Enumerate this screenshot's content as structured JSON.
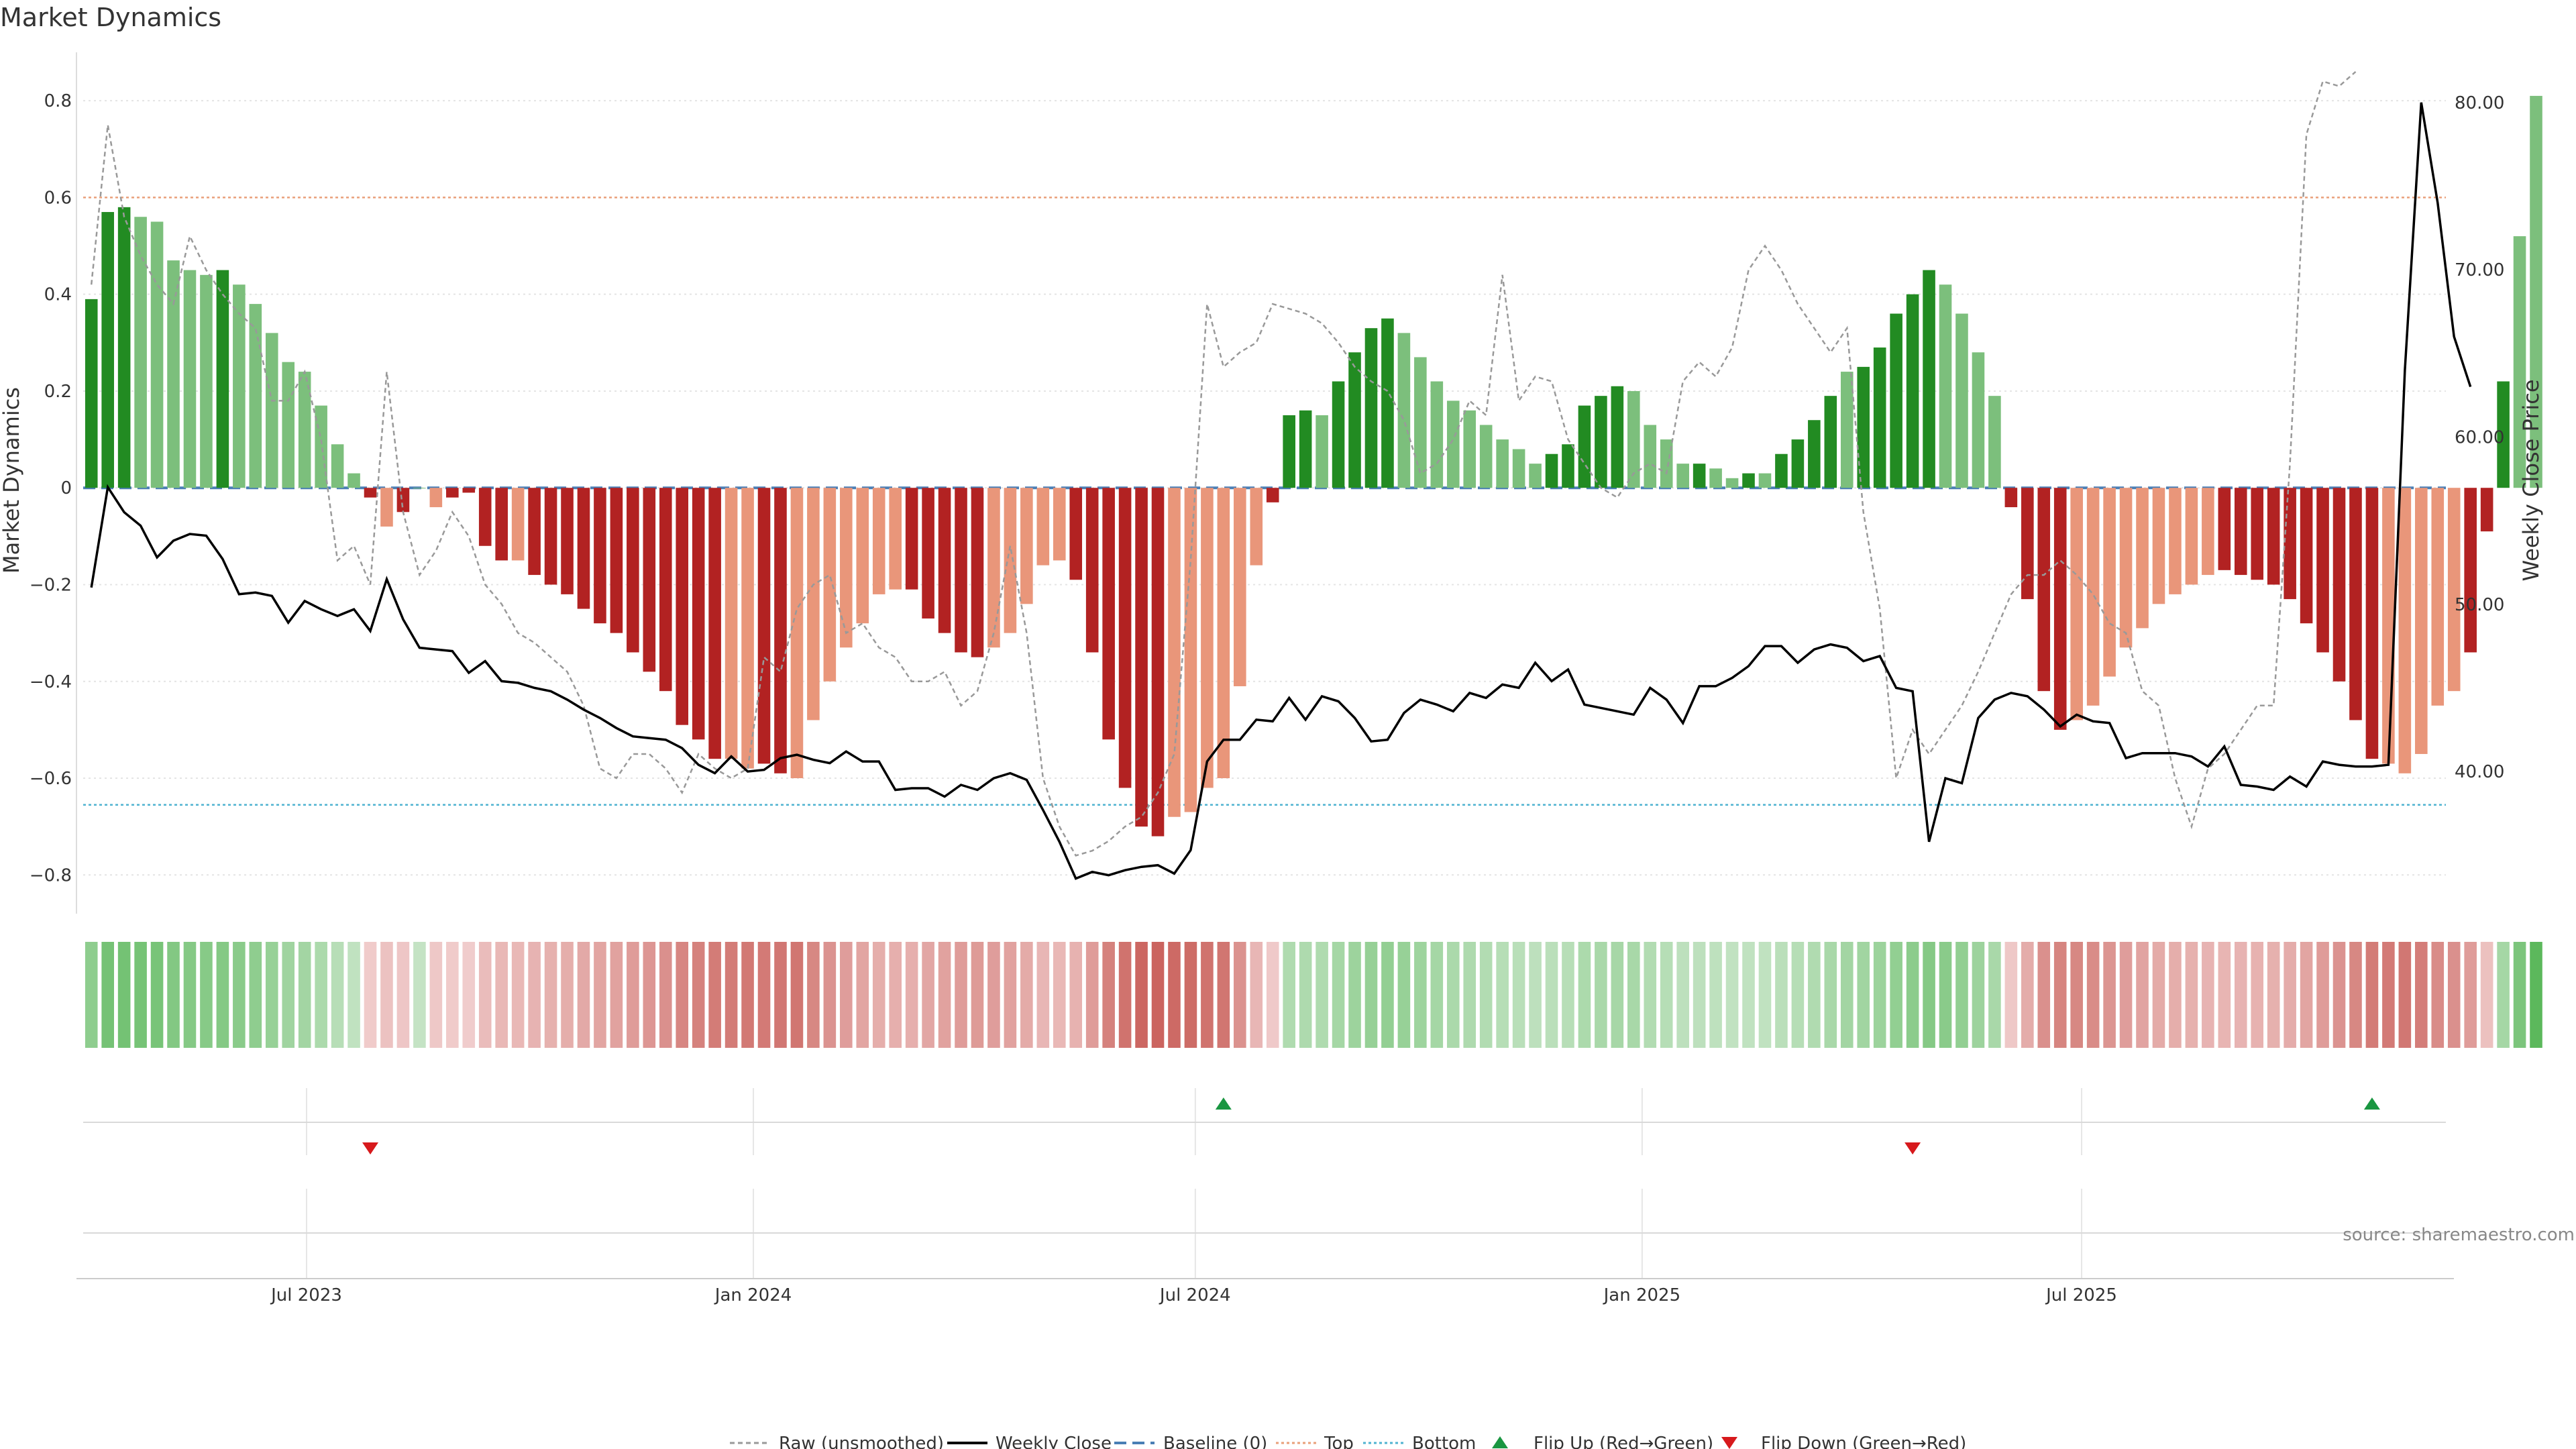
{
  "chart_data": {
    "type": "bar",
    "title": "Market Dynamics",
    "left_axis": {
      "label": "Market Dynamics",
      "ylim": [
        -0.88,
        0.9
      ],
      "ticks": [
        0.8,
        0.6,
        0.4,
        0.2,
        0,
        -0.2,
        -0.4,
        -0.6,
        -0.8
      ],
      "tick_labels": [
        "0.8",
        "0.6",
        "0.4",
        "0.2",
        "0",
        "−0.2",
        "−0.4",
        "−0.6",
        "−0.8"
      ]
    },
    "right_axis": {
      "label": "Weekly Close Price",
      "ylim": [
        31.5,
        83.0
      ],
      "ticks": [
        80,
        70,
        60,
        50,
        40
      ],
      "tick_labels": [
        "80.00",
        "70.00",
        "60.00",
        "50.00",
        "40.00"
      ]
    },
    "x_axis": {
      "start": "2023-03-31",
      "end": "2025-11-28",
      "tick_dates": [
        "2023-07-01",
        "2024-01-01",
        "2024-07-01",
        "2025-01-01",
        "2025-07-01"
      ],
      "tick_labels": [
        "Jul 2023",
        "Jan 2024",
        "Jul 2024",
        "Jan 2025",
        "Jul 2025"
      ]
    },
    "reference_lines": {
      "top": 0.6,
      "bottom": -0.655,
      "baseline": 0
    },
    "colors": {
      "dark_green": "#228b22",
      "light_green": "#7cbf7c",
      "dark_red": "#b22222",
      "light_red": "#e9967a",
      "raw": "#999999",
      "close": "#000000",
      "baseline": "#4a7fb5",
      "top": "#e9a07a",
      "bottom": "#4fb3d1",
      "flip_up": "#1a9641",
      "flip_down": "#d7191c"
    },
    "bar_weeks": 144,
    "bar_values": [
      0.39,
      0.57,
      0.58,
      0.56,
      0.55,
      0.47,
      0.45,
      0.44,
      0.45,
      0.42,
      0.38,
      0.32,
      0.26,
      0.24,
      0.17,
      0.09,
      0.03,
      -0.02,
      -0.08,
      -0.05,
      0.0,
      -0.04,
      -0.02,
      -0.01,
      -0.12,
      -0.15,
      -0.15,
      -0.18,
      -0.2,
      -0.22,
      -0.25,
      -0.28,
      -0.3,
      -0.34,
      -0.38,
      -0.42,
      -0.49,
      -0.52,
      -0.56,
      -0.56,
      -0.58,
      -0.57,
      -0.59,
      -0.6,
      -0.48,
      -0.4,
      -0.33,
      -0.28,
      -0.22,
      -0.21,
      -0.21,
      -0.27,
      -0.3,
      -0.34,
      -0.35,
      -0.33,
      -0.3,
      -0.24,
      -0.16,
      -0.15,
      -0.19,
      -0.34,
      -0.52,
      -0.62,
      -0.7,
      -0.72,
      -0.68,
      -0.67,
      -0.62,
      -0.6,
      -0.41,
      -0.16,
      -0.03,
      0.15,
      0.16,
      0.15,
      0.22,
      0.28,
      0.33,
      0.35,
      0.32,
      0.27,
      0.22,
      0.18,
      0.16,
      0.13,
      0.1,
      0.08,
      0.05,
      0.07,
      0.09,
      0.17,
      0.19,
      0.21,
      0.2,
      0.13,
      0.1,
      0.05,
      0.05,
      0.04,
      0.02,
      0.03,
      0.03,
      0.07,
      0.1,
      0.14,
      0.19,
      0.24,
      0.25,
      0.29,
      0.36,
      0.4,
      0.45,
      0.42,
      0.36,
      0.28,
      0.19,
      -0.04,
      -0.23,
      -0.42,
      -0.5,
      -0.48,
      -0.45,
      -0.39,
      -0.33,
      -0.29,
      -0.24,
      -0.22,
      -0.2,
      -0.18,
      -0.17,
      -0.18,
      -0.19,
      -0.2,
      -0.23,
      -0.28,
      -0.34,
      -0.4,
      -0.48,
      -0.56,
      -0.57,
      -0.59,
      -0.55,
      -0.45,
      -0.42,
      -0.34,
      -0.09,
      0.22,
      0.52,
      0.81
    ],
    "bar_shades": [
      "dark",
      "dark",
      "dark",
      "light",
      "light",
      "light",
      "light",
      "light",
      "dark",
      "light",
      "light",
      "light",
      "light",
      "light",
      "light",
      "light",
      "light",
      "dark",
      "light",
      "dark",
      "light",
      "light",
      "dark",
      "dark",
      "dark",
      "dark",
      "light",
      "dark",
      "dark",
      "dark",
      "dark",
      "dark",
      "dark",
      "dark",
      "dark",
      "dark",
      "dark",
      "dark",
      "dark",
      "light",
      "light",
      "dark",
      "dark",
      "light",
      "light",
      "light",
      "light",
      "light",
      "light",
      "light",
      "dark",
      "dark",
      "dark",
      "dark",
      "dark",
      "light",
      "light",
      "light",
      "light",
      "light",
      "dark",
      "dark",
      "dark",
      "dark",
      "dark",
      "dark",
      "light",
      "light",
      "light",
      "light",
      "light",
      "light",
      "dark",
      "dark",
      "dark",
      "light",
      "dark",
      "dark",
      "dark",
      "dark",
      "light",
      "light",
      "light",
      "light",
      "light",
      "light",
      "light",
      "light",
      "light",
      "dark",
      "dark",
      "dark",
      "dark",
      "dark",
      "light",
      "light",
      "light",
      "light",
      "dark",
      "light",
      "light",
      "dark",
      "light",
      "dark",
      "dark",
      "dark",
      "dark",
      "light",
      "dark",
      "dark",
      "dark",
      "dark",
      "dark",
      "light",
      "light",
      "light",
      "light",
      "dark",
      "dark",
      "dark",
      "dark",
      "light",
      "light",
      "light",
      "light",
      "light",
      "light",
      "light",
      "light",
      "light",
      "dark",
      "dark",
      "dark",
      "dark",
      "dark",
      "dark",
      "dark",
      "dark",
      "dark",
      "dark",
      "light",
      "light",
      "light",
      "light",
      "light",
      "dark",
      "dark",
      "dark"
    ],
    "raw_values": [
      0.42,
      0.75,
      0.56,
      0.48,
      0.42,
      0.38,
      0.52,
      0.45,
      0.4,
      0.36,
      0.33,
      0.18,
      0.18,
      0.24,
      0.1,
      -0.15,
      -0.12,
      -0.2,
      0.24,
      -0.05,
      -0.18,
      -0.13,
      -0.05,
      -0.1,
      -0.2,
      -0.24,
      -0.3,
      -0.32,
      -0.35,
      -0.38,
      -0.45,
      -0.58,
      -0.6,
      -0.55,
      -0.55,
      -0.58,
      -0.63,
      -0.55,
      -0.58,
      -0.6,
      -0.58,
      -0.35,
      -0.38,
      -0.25,
      -0.2,
      -0.18,
      -0.3,
      -0.28,
      -0.33,
      -0.35,
      -0.4,
      -0.4,
      -0.38,
      -0.45,
      -0.42,
      -0.3,
      -0.12,
      -0.3,
      -0.6,
      -0.7,
      -0.76,
      -0.75,
      -0.73,
      -0.7,
      -0.68,
      -0.63,
      -0.55,
      -0.15,
      0.38,
      0.25,
      0.28,
      0.3,
      0.38,
      0.37,
      0.36,
      0.34,
      0.3,
      0.25,
      0.22,
      0.2,
      0.14,
      0.03,
      0.05,
      0.1,
      0.18,
      0.15,
      0.44,
      0.18,
      0.23,
      0.22,
      0.1,
      0.05,
      0.0,
      -0.02,
      0.03,
      0.05,
      0.03,
      0.22,
      0.26,
      0.23,
      0.29,
      0.45,
      0.5,
      0.45,
      0.38,
      0.33,
      0.28,
      0.33,
      -0.05,
      -0.25,
      -0.6,
      -0.5,
      -0.55,
      -0.5,
      -0.45,
      -0.38,
      -0.3,
      -0.22,
      -0.18,
      -0.18,
      -0.15,
      -0.18,
      -0.22,
      -0.28,
      -0.3,
      -0.42,
      -0.45,
      -0.6,
      -0.7,
      -0.58,
      -0.55,
      -0.5,
      -0.45,
      -0.45,
      0.05,
      0.73,
      0.84,
      0.83,
      0.86
    ],
    "close_values": [
      51.0,
      57.0,
      55.5,
      54.7,
      52.8,
      53.8,
      54.2,
      54.1,
      52.7,
      50.6,
      50.7,
      50.5,
      48.9,
      50.2,
      49.7,
      49.3,
      49.7,
      48.4,
      51.5,
      49.1,
      47.4,
      47.3,
      47.2,
      45.9,
      46.6,
      45.4,
      45.3,
      45.0,
      44.8,
      44.3,
      43.7,
      43.2,
      42.6,
      42.1,
      42.0,
      41.9,
      41.4,
      40.4,
      39.9,
      40.9,
      40.0,
      40.1,
      40.8,
      41.0,
      40.7,
      40.5,
      41.2,
      40.6,
      40.6,
      38.9,
      39.0,
      39.0,
      38.5,
      39.2,
      38.9,
      39.6,
      39.9,
      39.5,
      37.7,
      35.8,
      33.6,
      34.0,
      33.8,
      34.1,
      34.3,
      34.4,
      33.9,
      35.3,
      40.6,
      41.9,
      41.9,
      43.1,
      43.0,
      44.4,
      43.1,
      44.5,
      44.2,
      43.2,
      41.8,
      41.9,
      43.5,
      44.3,
      44.0,
      43.6,
      44.7,
      44.4,
      45.2,
      45.0,
      46.5,
      45.4,
      46.1,
      44.0,
      43.8,
      43.6,
      43.4,
      45.0,
      44.3,
      42.9,
      45.1,
      45.1,
      45.6,
      46.3,
      47.5,
      47.5,
      46.5,
      47.3,
      47.6,
      47.4,
      46.6,
      46.9,
      45.0,
      44.8,
      35.8,
      39.6,
      39.3,
      43.2,
      44.3,
      44.7,
      44.5,
      43.7,
      42.7,
      43.4,
      43.0,
      42.9,
      40.8,
      41.1,
      41.1,
      41.1,
      40.9,
      40.3,
      41.5,
      39.2,
      39.1,
      38.9,
      39.7,
      39.1,
      40.6,
      40.4,
      40.3,
      40.3,
      40.4,
      64.0,
      80.0,
      74.0,
      66.0,
      63.0
    ],
    "flip_up_weeks": [
      69,
      139
    ],
    "flip_down_weeks": [
      17,
      111
    ],
    "heat_strip": true
  },
  "legend": {
    "raw": "Raw (unsmoothed)",
    "close": "Weekly Close",
    "baseline": "Baseline (0)",
    "top": "Top",
    "bottom": "Bottom",
    "flip_up": "Flip Up (Red→Green)",
    "flip_down": "Flip Down (Green→Red)"
  },
  "source": "source: sharemaestro.com"
}
